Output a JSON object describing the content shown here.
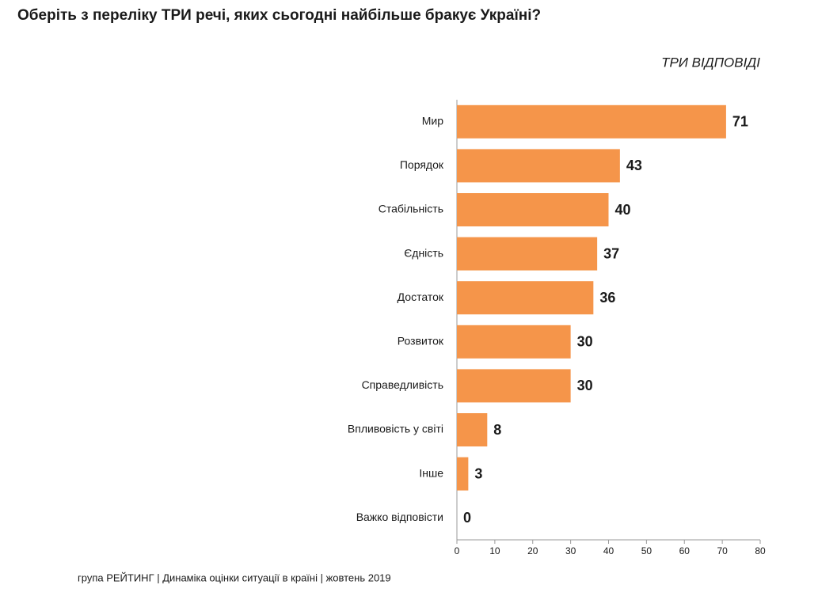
{
  "chart_data": {
    "type": "hbar",
    "title": "Оберіть з переліку ТРИ речі, яких сьогодні найбільше бракує Україні?",
    "subtitle": "ТРИ ВІДПОВІДІ",
    "categories": [
      "Мир",
      "Порядок",
      "Стабільність",
      "Єдність",
      "Достаток",
      "Розвиток",
      "Справедливість",
      "Впливовість у світі",
      "Інше",
      "Важко відповісти"
    ],
    "values": [
      71,
      43,
      40,
      37,
      36,
      30,
      30,
      8,
      3,
      0
    ],
    "color": "#f5954a",
    "xlim": [
      0,
      80
    ],
    "xticks": [
      0,
      10,
      20,
      30,
      40,
      50,
      60,
      70,
      80
    ],
    "footer": "група РЕЙТИНГ |  Динаміка оцінки ситуації в країні  |  жовтень  2019"
  }
}
